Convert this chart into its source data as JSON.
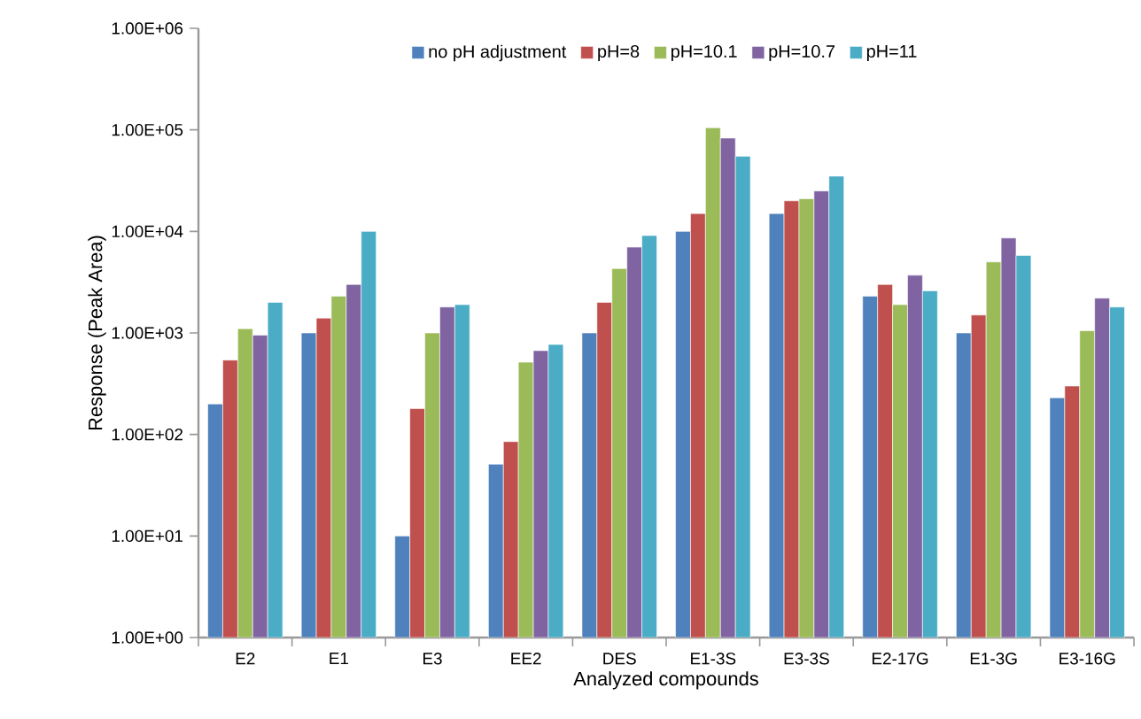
{
  "chart_data": {
    "type": "bar",
    "xlabel": "Analyzed compounds",
    "ylabel": "Response (Peak Area)",
    "categories": [
      "E2",
      "E1",
      "E3",
      "EE2",
      "DES",
      "E1-3S",
      "E3-3S",
      "E2-17G",
      "E1-3G",
      "E3-16G"
    ],
    "log": "y",
    "ylim": [
      1,
      1000000
    ],
    "yticks": [
      {
        "value": 1,
        "label": "1.00E+00"
      },
      {
        "value": 10,
        "label": "1.00E+01"
      },
      {
        "value": 100,
        "label": "1.00E+02"
      },
      {
        "value": 1000,
        "label": "1.00E+03"
      },
      {
        "value": 10000,
        "label": "1.00E+04"
      },
      {
        "value": 100000,
        "label": "1.00E+05"
      },
      {
        "value": 1000000,
        "label": "1.00E+06"
      }
    ],
    "legend": "top",
    "grid": false,
    "series": [
      {
        "name": "no pH adjustment",
        "color": "#4f81bd",
        "values": [
          200,
          1000,
          10,
          51,
          1000,
          10000,
          15000,
          2300,
          1000,
          230
        ]
      },
      {
        "name": "pH=8",
        "color": "#c0504d",
        "values": [
          540,
          1400,
          180,
          85,
          2000,
          15000,
          20000,
          3000,
          1500,
          300
        ]
      },
      {
        "name": "pH=10.1",
        "color": "#9bbb59",
        "values": [
          1100,
          2300,
          1000,
          515,
          4300,
          105000,
          21000,
          1900,
          5000,
          1050
        ]
      },
      {
        "name": "pH=10.7",
        "color": "#8064a2",
        "values": [
          950,
          3000,
          1800,
          670,
          7000,
          83000,
          25000,
          3700,
          8600,
          2200
        ]
      },
      {
        "name": "pH=11",
        "color": "#4bacc6",
        "values": [
          2000,
          10000,
          1900,
          770,
          9100,
          55000,
          35000,
          2600,
          5800,
          1800
        ]
      }
    ]
  }
}
